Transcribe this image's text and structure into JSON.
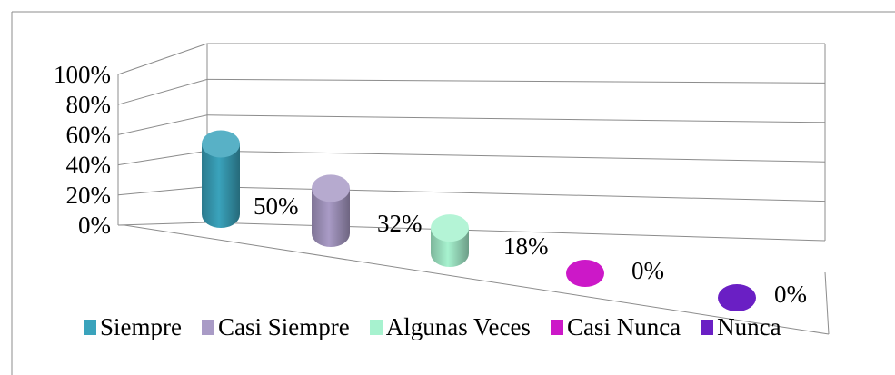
{
  "chart_data": {
    "type": "bar",
    "bar_shape": "cylinder",
    "three_d": true,
    "categories": [
      "Siempre",
      "Casi Siempre",
      "Algunas Veces",
      "Casi Nunca",
      "Nunca"
    ],
    "values": [
      50,
      32,
      18,
      0,
      0
    ],
    "data_labels": [
      "50%",
      "32%",
      "18%",
      "0%",
      "0%"
    ],
    "colors": [
      "#3aa3bc",
      "#a99bc6",
      "#a7f2cf",
      "#cc18c8",
      "#6a1fc4"
    ],
    "y_ticks": [
      "0%",
      "20%",
      "40%",
      "60%",
      "80%",
      "100%"
    ],
    "ylim": [
      0,
      100
    ],
    "grid": true,
    "legend_position": "bottom",
    "title": "",
    "xlabel": "",
    "ylabel": ""
  }
}
